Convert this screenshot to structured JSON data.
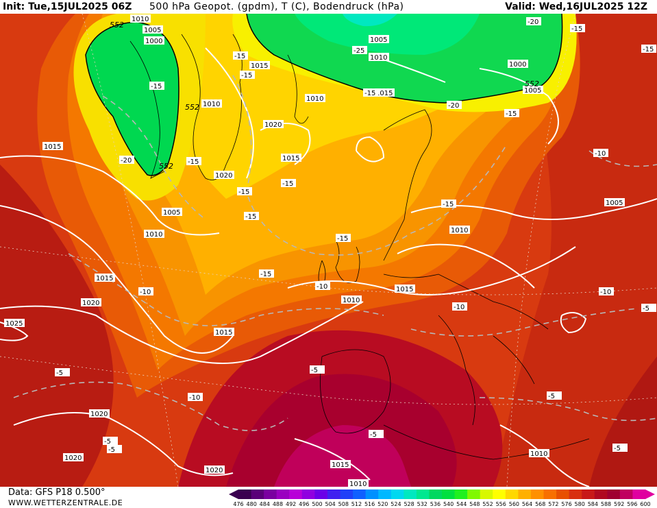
{
  "header": {
    "init": "Init: Tue,15JUL2025 06Z",
    "title": "500 hPa Geopot. (gpdm), T (C), Bodendruck (hPa)",
    "valid": "Valid: Wed,16JUL2025 12Z"
  },
  "footer": {
    "source": "Data: GFS P18 0.500°",
    "site": "WWW.WETTERZENTRALE.DE"
  },
  "legend": {
    "values": [
      "476",
      "480",
      "484",
      "488",
      "492",
      "496",
      "500",
      "504",
      "508",
      "512",
      "516",
      "520",
      "524",
      "528",
      "532",
      "536",
      "540",
      "544",
      "548",
      "552",
      "556",
      "560",
      "564",
      "568",
      "572",
      "576",
      "580",
      "584",
      "588",
      "592",
      "596",
      "600"
    ],
    "colors": [
      "#3a0050",
      "#5a0078",
      "#7a00a0",
      "#9a00c0",
      "#b800d8",
      "#9000e0",
      "#6a00e8",
      "#4020f0",
      "#2040f8",
      "#1060ff",
      "#0090ff",
      "#00b8ff",
      "#00d8f0",
      "#00e8c0",
      "#00e890",
      "#00d860",
      "#00e040",
      "#20f020",
      "#80f800",
      "#d8f800",
      "#ffff00",
      "#ffd800",
      "#ffb000",
      "#ff9000",
      "#f87000",
      "#e85000",
      "#d83010",
      "#c81818",
      "#b00820",
      "#a00030",
      "#c00060",
      "#e000a0"
    ]
  },
  "map": {
    "pressure_labels": [
      "1010",
      "1005",
      "1000",
      "1015",
      "1010",
      "1020",
      "1015",
      "1020",
      "1015",
      "1010",
      "1005",
      "1010",
      "1015",
      "1020",
      "1025",
      "1015",
      "1020",
      "1020",
      "1020",
      "1015",
      "1010",
      "1015",
      "1010",
      "1005",
      "1000",
      "1005",
      "1010",
      "1015",
      "1010",
      "1005",
      "1010"
    ],
    "temp_labels": [
      "-15",
      "-15",
      "-15",
      "-20",
      "-15",
      "-15",
      "-15",
      "-15",
      "-15",
      "-15",
      "-15",
      "-10",
      "-10",
      "-10",
      "-25",
      "-20",
      "-15",
      "-15",
      "-10",
      "-10",
      "-10",
      "-15",
      "-5",
      "-5",
      "-5",
      "-5",
      "-5",
      "-5",
      "-20",
      "-15",
      "-5",
      "-5"
    ],
    "geo_labels": [
      "552",
      "552",
      "552",
      "552"
    ]
  }
}
